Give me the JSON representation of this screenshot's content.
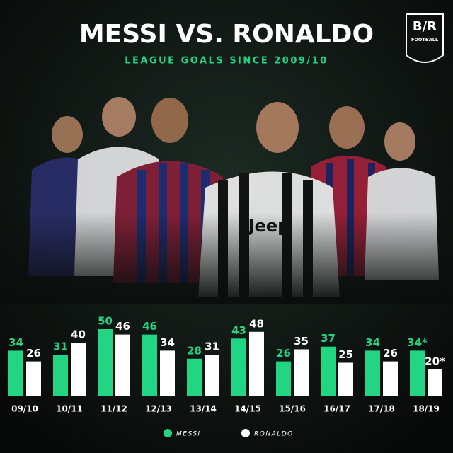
{
  "chart_data": {
    "type": "bar",
    "title": "MESSI VS. RONALDO",
    "subtitle": "LEAGUE GOALS SINCE 2009/10",
    "brand": "B/R",
    "brand_sub": "FOOTBALL",
    "categories": [
      "09/10",
      "10/11",
      "11/12",
      "12/13",
      "13/14",
      "14/15",
      "15/16",
      "16/17",
      "17/18",
      "18/19"
    ],
    "series": [
      {
        "name": "MESSI",
        "color": "#22d583",
        "values": [
          34,
          31,
          50,
          46,
          28,
          43,
          26,
          37,
          34,
          34
        ],
        "value_labels": [
          "34",
          "31",
          "50",
          "46",
          "28",
          "43",
          "26",
          "37",
          "34",
          "34*"
        ]
      },
      {
        "name": "RONALDO",
        "color": "#ffffff",
        "values": [
          26,
          40,
          46,
          34,
          31,
          48,
          35,
          25,
          26,
          20
        ],
        "value_labels": [
          "26",
          "40",
          "46",
          "34",
          "31",
          "48",
          "35",
          "25",
          "26",
          "20*"
        ]
      }
    ]
  }
}
